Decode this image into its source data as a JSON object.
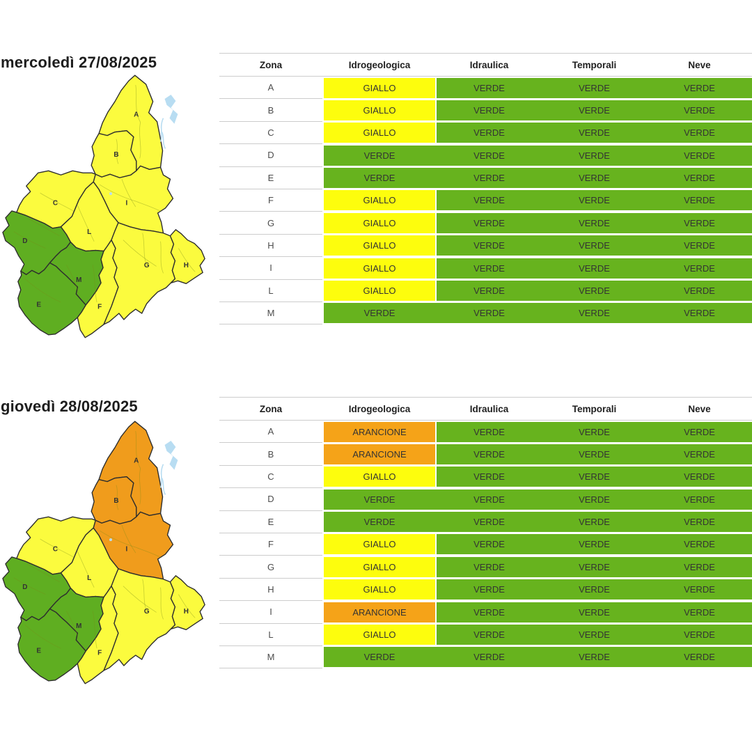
{
  "page": {
    "background": "#FFFFFF"
  },
  "levels": {
    "VERDE": {
      "label": "VERDE",
      "cell_color": "#67B31E",
      "map_color": "#5FAE21"
    },
    "GIALLO": {
      "label": "GIALLO",
      "cell_color": "#FDFD0D",
      "map_color": "#FBFB3E"
    },
    "ARANCIONE": {
      "label": "ARANCIONE",
      "cell_color": "#F5A318",
      "map_color": "#F09C1C"
    }
  },
  "ui": {
    "row_line_color": "#CCCCCC",
    "header_text_color": "#1F1F1F",
    "cell_text_color": "#333333",
    "zona_text_color": "#4D4D4D",
    "title_text_color": "#1D1D1D",
    "map_border_color": "#2E2E2E",
    "water_color": "#B8DDF2",
    "map_label_color": "#333333"
  },
  "days": [
    {
      "title": "mercoledì 27/08/2025",
      "table": {
        "headers": [
          "Zona",
          "Idrogeologica",
          "Idraulica",
          "Temporali",
          "Neve"
        ],
        "rows": [
          {
            "zona": "A",
            "idrogeologica": "GIALLO",
            "idraulica": "VERDE",
            "temporali": "VERDE",
            "neve": "VERDE"
          },
          {
            "zona": "B",
            "idrogeologica": "GIALLO",
            "idraulica": "VERDE",
            "temporali": "VERDE",
            "neve": "VERDE"
          },
          {
            "zona": "C",
            "idrogeologica": "GIALLO",
            "idraulica": "VERDE",
            "temporali": "VERDE",
            "neve": "VERDE"
          },
          {
            "zona": "D",
            "idrogeologica": "VERDE",
            "idraulica": "VERDE",
            "temporali": "VERDE",
            "neve": "VERDE"
          },
          {
            "zona": "E",
            "idrogeologica": "VERDE",
            "idraulica": "VERDE",
            "temporali": "VERDE",
            "neve": "VERDE"
          },
          {
            "zona": "F",
            "idrogeologica": "GIALLO",
            "idraulica": "VERDE",
            "temporali": "VERDE",
            "neve": "VERDE"
          },
          {
            "zona": "G",
            "idrogeologica": "GIALLO",
            "idraulica": "VERDE",
            "temporali": "VERDE",
            "neve": "VERDE"
          },
          {
            "zona": "H",
            "idrogeologica": "GIALLO",
            "idraulica": "VERDE",
            "temporali": "VERDE",
            "neve": "VERDE"
          },
          {
            "zona": "I",
            "idrogeologica": "GIALLO",
            "idraulica": "VERDE",
            "temporali": "VERDE",
            "neve": "VERDE"
          },
          {
            "zona": "L",
            "idrogeologica": "GIALLO",
            "idraulica": "VERDE",
            "temporali": "VERDE",
            "neve": "VERDE"
          },
          {
            "zona": "M",
            "idrogeologica": "VERDE",
            "idraulica": "VERDE",
            "temporali": "VERDE",
            "neve": "VERDE"
          }
        ]
      },
      "map_zones": {
        "A": "GIALLO",
        "B": "GIALLO",
        "C": "GIALLO",
        "D": "VERDE",
        "E": "VERDE",
        "F": "GIALLO",
        "G": "GIALLO",
        "H": "GIALLO",
        "I": "GIALLO",
        "L": "GIALLO",
        "M": "VERDE"
      }
    },
    {
      "title": "giovedì 28/08/2025",
      "table": {
        "headers": [
          "Zona",
          "Idrogeologica",
          "Idraulica",
          "Temporali",
          "Neve"
        ],
        "rows": [
          {
            "zona": "A",
            "idrogeologica": "ARANCIONE",
            "idraulica": "VERDE",
            "temporali": "VERDE",
            "neve": "VERDE"
          },
          {
            "zona": "B",
            "idrogeologica": "ARANCIONE",
            "idraulica": "VERDE",
            "temporali": "VERDE",
            "neve": "VERDE"
          },
          {
            "zona": "C",
            "idrogeologica": "GIALLO",
            "idraulica": "VERDE",
            "temporali": "VERDE",
            "neve": "VERDE"
          },
          {
            "zona": "D",
            "idrogeologica": "VERDE",
            "idraulica": "VERDE",
            "temporali": "VERDE",
            "neve": "VERDE"
          },
          {
            "zona": "E",
            "idrogeologica": "VERDE",
            "idraulica": "VERDE",
            "temporali": "VERDE",
            "neve": "VERDE"
          },
          {
            "zona": "F",
            "idrogeologica": "GIALLO",
            "idraulica": "VERDE",
            "temporali": "VERDE",
            "neve": "VERDE"
          },
          {
            "zona": "G",
            "idrogeologica": "GIALLO",
            "idraulica": "VERDE",
            "temporali": "VERDE",
            "neve": "VERDE"
          },
          {
            "zona": "H",
            "idrogeologica": "GIALLO",
            "idraulica": "VERDE",
            "temporali": "VERDE",
            "neve": "VERDE"
          },
          {
            "zona": "I",
            "idrogeologica": "ARANCIONE",
            "idraulica": "VERDE",
            "temporali": "VERDE",
            "neve": "VERDE"
          },
          {
            "zona": "L",
            "idrogeologica": "GIALLO",
            "idraulica": "VERDE",
            "temporali": "VERDE",
            "neve": "VERDE"
          },
          {
            "zona": "M",
            "idrogeologica": "VERDE",
            "idraulica": "VERDE",
            "temporali": "VERDE",
            "neve": "VERDE"
          }
        ]
      },
      "map_zones": {
        "A": "ARANCIONE",
        "B": "ARANCIONE",
        "C": "GIALLO",
        "D": "VERDE",
        "E": "VERDE",
        "F": "GIALLO",
        "G": "GIALLO",
        "H": "GIALLO",
        "I": "ARANCIONE",
        "L": "GIALLO",
        "M": "VERDE"
      }
    }
  ]
}
